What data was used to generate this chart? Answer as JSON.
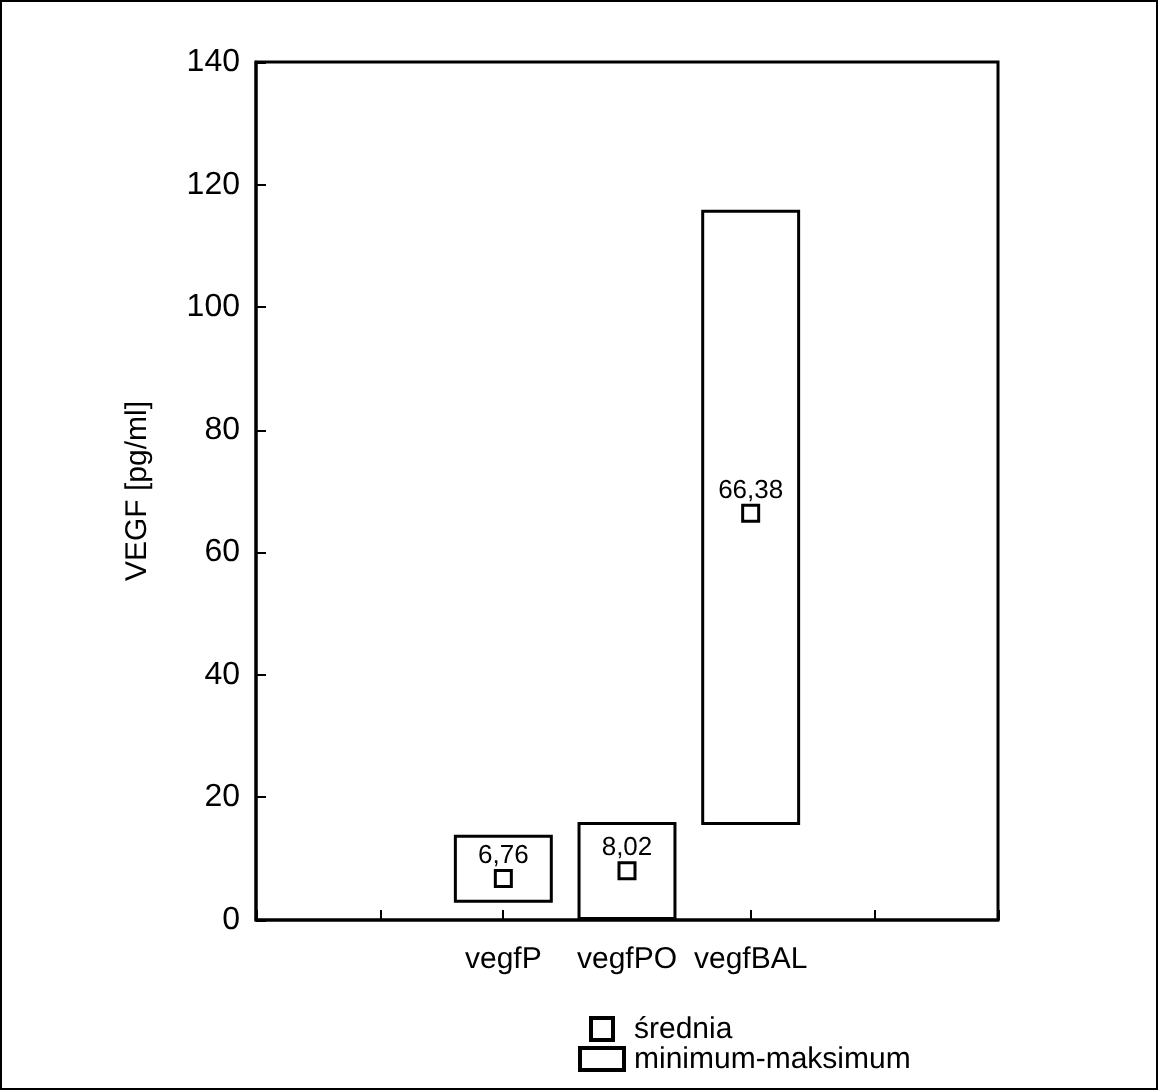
{
  "chart_data": {
    "type": "bar",
    "ylabel": "VEGF [pg/ml]",
    "categories": [
      null,
      null,
      "vegfP",
      "vegfPO",
      "vegfBAL",
      null,
      null
    ],
    "ylim": [
      0,
      140
    ],
    "yticks": [
      0,
      20,
      40,
      60,
      80,
      100,
      120,
      140
    ],
    "grid": false,
    "legend": "bottom",
    "series": [
      {
        "type": "scatter",
        "name": "średnia",
        "color": "#000000",
        "marker": "square",
        "x": [
          "vegfP",
          "vegfPO",
          "vegfBAL"
        ],
        "values": [
          6.76,
          8.02,
          66.38
        ],
        "value_labels": [
          "6,76",
          "8,02",
          "66,38"
        ]
      },
      {
        "name": "minimum-maksimum",
        "color": "#ffffff",
        "values": [
          null,
          null,
          11.1,
          16.0,
          100.4,
          null,
          null
        ],
        "base": [
          null,
          null,
          2.8,
          0,
          15.5,
          null,
          null
        ]
      }
    ]
  }
}
